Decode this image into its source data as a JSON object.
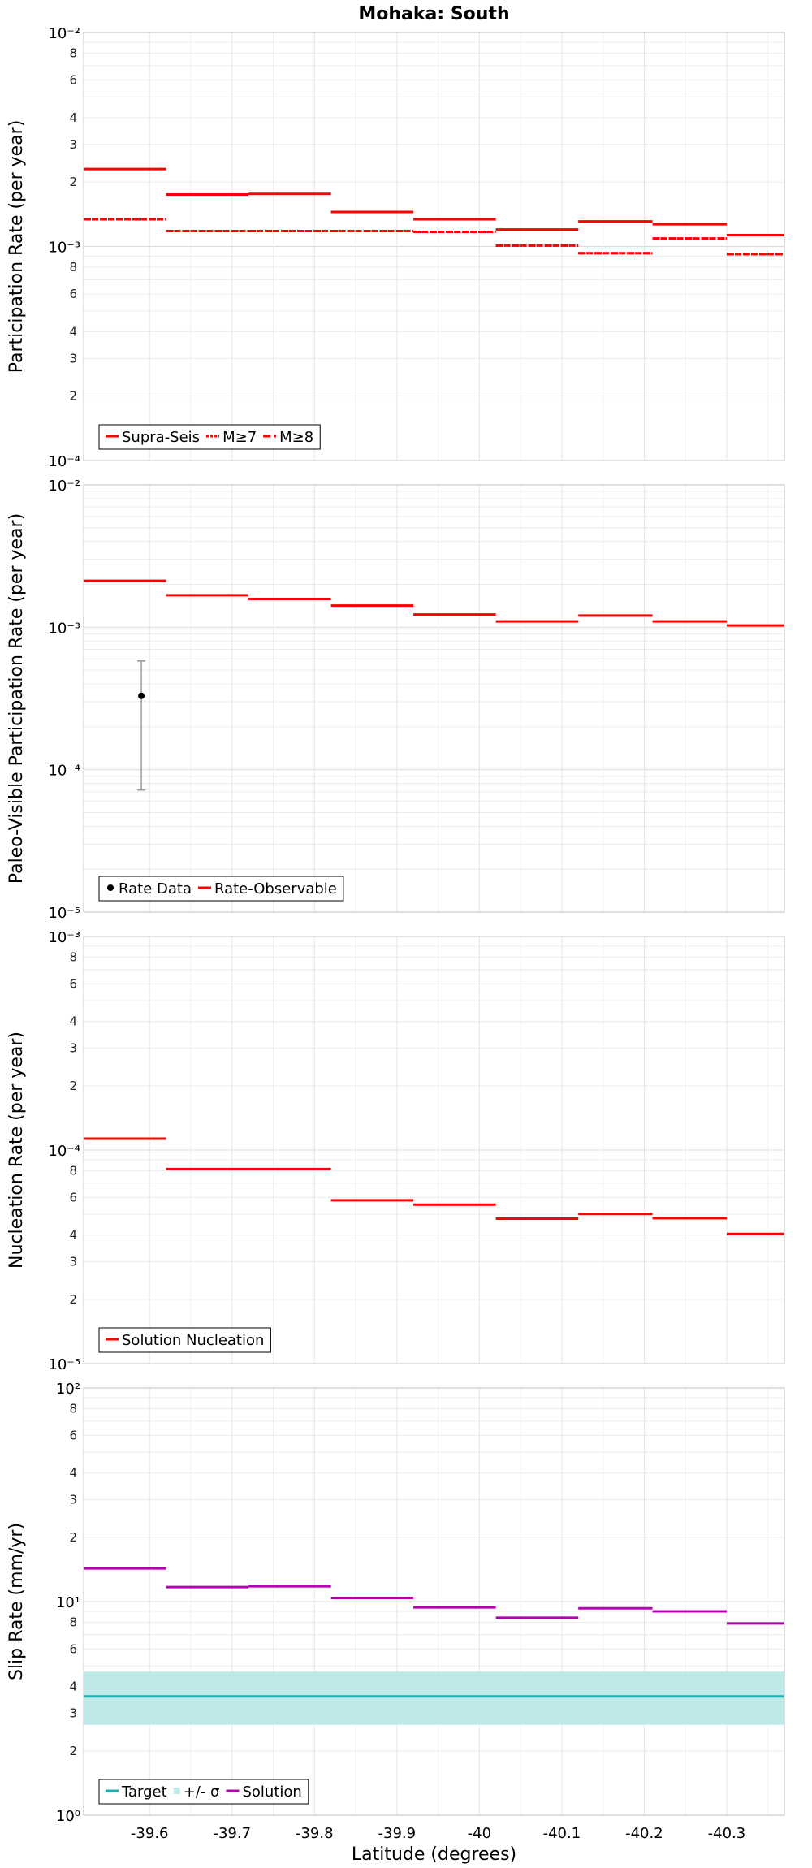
{
  "chart_data": [
    {
      "type": "line",
      "title": "Mohaka: South",
      "ylabel": "Participation Rate (per year)",
      "xlabel": "",
      "xlim": [
        -39.52,
        -40.37
      ],
      "ylim": [
        0.0001,
        0.01
      ],
      "yscale": "log",
      "grid": true,
      "legend_placement": "bottom-left",
      "x_edges": [
        -39.52,
        -39.62,
        -39.72,
        -39.82,
        -39.92,
        -40.02,
        -40.12,
        -40.21,
        -40.3,
        -40.37
      ],
      "series": [
        {
          "name": "Supra-Seis",
          "color": "#ff0000",
          "style": "solid",
          "values": [
            0.0023,
            0.00175,
            0.00176,
            0.00145,
            0.00134,
            0.0012,
            0.00131,
            0.00127,
            0.00113
          ]
        },
        {
          "name": "M≥7",
          "color": "#ff0000",
          "style": "dotted",
          "values": [
            0.00134,
            0.00118,
            0.00118,
            0.00118,
            0.00117,
            0.00101,
            0.00093,
            0.00109,
            0.00092
          ]
        },
        {
          "name": "M≥8",
          "color": "#ff0000",
          "style": "dashdot",
          "values": [
            0.00134,
            0.00118,
            0.00118,
            0.00118,
            0.00117,
            0.00101,
            0.00093,
            0.00109,
            0.00092
          ]
        }
      ]
    },
    {
      "type": "line",
      "ylabel": "Paleo-Visible Participation Rate (per year)",
      "xlim": [
        -39.52,
        -40.37
      ],
      "ylim": [
        1e-05,
        0.01
      ],
      "yscale": "log",
      "grid": true,
      "legend_placement": "bottom-left",
      "x_edges": [
        -39.52,
        -39.62,
        -39.72,
        -39.82,
        -39.92,
        -40.02,
        -40.12,
        -40.21,
        -40.3,
        -40.37
      ],
      "series": [
        {
          "name": "Rate-Observable",
          "color": "#ff0000",
          "style": "solid",
          "values": [
            0.00212,
            0.00168,
            0.00158,
            0.00142,
            0.00123,
            0.0011,
            0.00121,
            0.0011,
            0.00103
          ]
        }
      ],
      "points": [
        {
          "name": "Rate Data",
          "x": -39.59,
          "y": 0.00033,
          "lower": 7.2e-05,
          "upper": 0.00058,
          "color": "#000000"
        }
      ]
    },
    {
      "type": "line",
      "ylabel": "Nucleation Rate (per year)",
      "xlim": [
        -39.52,
        -40.37
      ],
      "ylim": [
        1e-05,
        0.001
      ],
      "yscale": "log",
      "grid": true,
      "legend_placement": "bottom-left",
      "x_edges": [
        -39.52,
        -39.62,
        -39.72,
        -39.82,
        -39.92,
        -40.02,
        -40.12,
        -40.21,
        -40.3,
        -40.37
      ],
      "series": [
        {
          "name": "Solution Nucleation",
          "color": "#ff0000",
          "style": "solid",
          "values": [
            0.000113,
            8.15e-05,
            8.15e-05,
            5.82e-05,
            5.55e-05,
            4.77e-05,
            5.02e-05,
            4.8e-05,
            4.05e-05
          ]
        }
      ]
    },
    {
      "type": "line",
      "ylabel": "Slip Rate (mm/yr)",
      "xlabel": "Latitude (degrees)",
      "xlim": [
        -39.52,
        -40.37
      ],
      "ylim": [
        1,
        100
      ],
      "yscale": "log",
      "grid": true,
      "legend_placement": "bottom-left",
      "x_ticks": [
        -39.6,
        -39.7,
        -39.8,
        -39.9,
        -40,
        -40.1,
        -40.2,
        -40.3
      ],
      "x_tick_labels": [
        "-39.6",
        "-39.7",
        "-39.8",
        "-39.9",
        "-40",
        "-40.1",
        "-40.2",
        "-40.3"
      ],
      "x_edges": [
        -39.52,
        -39.62,
        -39.72,
        -39.82,
        -39.92,
        -40.02,
        -40.12,
        -40.21,
        -40.3,
        -40.37
      ],
      "target": {
        "name": "Target",
        "color": "#1ab2b2",
        "value": 3.6
      },
      "band": {
        "name": "+/- σ",
        "color": "#bfe9e9",
        "lower": 2.65,
        "upper": 4.7
      },
      "series": [
        {
          "name": "Solution",
          "color": "#b200b2",
          "style": "solid",
          "values": [
            14.3,
            11.7,
            11.8,
            10.4,
            9.4,
            8.4,
            9.3,
            9.0,
            7.9
          ]
        }
      ]
    }
  ]
}
